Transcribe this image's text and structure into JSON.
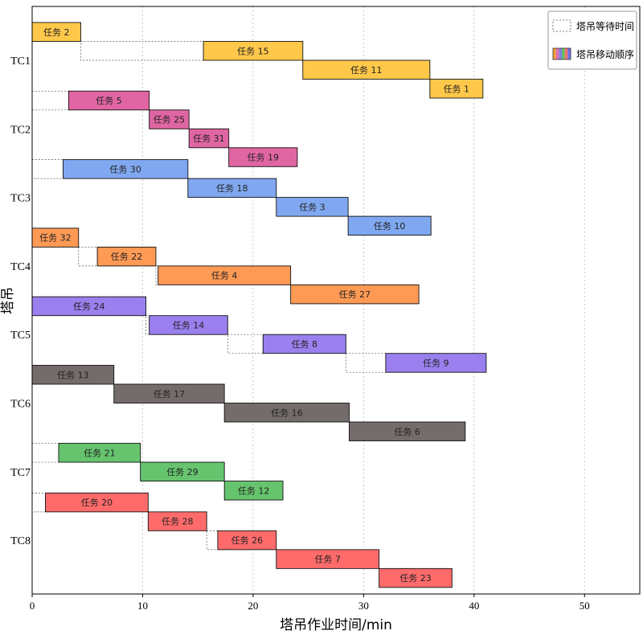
{
  "chart_data": {
    "type": "gantt",
    "xlabel": "塔吊作业时间/min",
    "ylabel": "塔吊",
    "xlim": [
      0,
      55
    ],
    "xticks": [
      0,
      10,
      20,
      30,
      40,
      50
    ],
    "grid": "vertical-dotted",
    "legend": {
      "position": "top-right",
      "entries": [
        {
          "key": "wait",
          "label": "塔吊等待时间"
        },
        {
          "key": "move",
          "label": "塔吊移动顺序"
        }
      ]
    },
    "legend_stripe_colors": [
      "#f0a030",
      "#e070b0",
      "#8080e0",
      "#60c060",
      "#f07070",
      "#7070e0"
    ],
    "cranes": [
      {
        "name": "TC1",
        "color": "#ffc84a",
        "tasks": [
          {
            "label": "任务 2",
            "start": 0,
            "end": 4.4
          },
          {
            "label": "任务 15",
            "start": 15.5,
            "end": 24.5
          },
          {
            "label": "任务 11",
            "start": 24.5,
            "end": 36
          },
          {
            "label": "任务 1",
            "start": 36,
            "end": 40.8
          }
        ],
        "waits": [
          {
            "start": 4.4,
            "end": 15.5
          }
        ]
      },
      {
        "name": "TC2",
        "color": "#e066a3",
        "tasks": [
          {
            "label": "任务 5",
            "start": 3.3,
            "end": 10.6
          },
          {
            "label": "任务 25",
            "start": 10.6,
            "end": 14.2
          },
          {
            "label": "任务 31",
            "start": 14.2,
            "end": 17.8
          },
          {
            "label": "任务 19",
            "start": 17.8,
            "end": 24
          }
        ],
        "waits": [
          {
            "start": 0,
            "end": 3.3
          }
        ]
      },
      {
        "name": "TC3",
        "color": "#80a8f0",
        "tasks": [
          {
            "label": "任务 30",
            "start": 2.8,
            "end": 14.1
          },
          {
            "label": "任务 18",
            "start": 14.1,
            "end": 22.1
          },
          {
            "label": "任务 3",
            "start": 22.1,
            "end": 28.6
          },
          {
            "label": "任务 10",
            "start": 28.6,
            "end": 36.1
          }
        ],
        "waits": [
          {
            "start": 0,
            "end": 2.8
          }
        ]
      },
      {
        "name": "TC4",
        "color": "#ff9a55",
        "tasks": [
          {
            "label": "任务 32",
            "start": 0,
            "end": 4.2
          },
          {
            "label": "任务 22",
            "start": 5.9,
            "end": 11.2
          },
          {
            "label": "任务 4",
            "start": 11.4,
            "end": 23.4
          },
          {
            "label": "任务 27",
            "start": 23.4,
            "end": 35
          }
        ],
        "waits": [
          {
            "start": 4.2,
            "end": 5.9
          },
          {
            "start": 11.2,
            "end": 11.4
          }
        ]
      },
      {
        "name": "TC5",
        "color": "#9a80ee",
        "tasks": [
          {
            "label": "任务 24",
            "start": 0,
            "end": 10.3
          },
          {
            "label": "任务 14",
            "start": 10.6,
            "end": 17.7
          },
          {
            "label": "任务 8",
            "start": 20.9,
            "end": 28.4
          },
          {
            "label": "任务 9",
            "start": 32,
            "end": 41.1
          }
        ],
        "waits": [
          {
            "start": 10.3,
            "end": 10.6
          },
          {
            "start": 17.7,
            "end": 20.9
          },
          {
            "start": 28.4,
            "end": 32
          }
        ]
      },
      {
        "name": "TC6",
        "color": "#746b6b",
        "tasks": [
          {
            "label": "任务 13",
            "start": 0,
            "end": 7.4
          },
          {
            "label": "任务 17",
            "start": 7.4,
            "end": 17.4
          },
          {
            "label": "任务 16",
            "start": 17.4,
            "end": 28.7
          },
          {
            "label": "任务 6",
            "start": 28.7,
            "end": 39.2
          }
        ],
        "waits": []
      },
      {
        "name": "TC7",
        "color": "#66c46e",
        "tasks": [
          {
            "label": "任务 21",
            "start": 2.4,
            "end": 9.8
          },
          {
            "label": "任务 29",
            "start": 9.8,
            "end": 17.4
          },
          {
            "label": "任务 12",
            "start": 17.4,
            "end": 22.7
          }
        ],
        "waits": [
          {
            "start": 0,
            "end": 2.4
          }
        ]
      },
      {
        "name": "TC8",
        "color": "#ff6b6b",
        "tasks": [
          {
            "label": "任务 20",
            "start": 1.2,
            "end": 10.5
          },
          {
            "label": "任务 28",
            "start": 10.5,
            "end": 15.8
          },
          {
            "label": "任务 26",
            "start": 16.8,
            "end": 22.1
          },
          {
            "label": "任务 7",
            "start": 22.1,
            "end": 31.4
          },
          {
            "label": "任务 23",
            "start": 31.4,
            "end": 38
          }
        ],
        "waits": [
          {
            "start": 0,
            "end": 1.2
          },
          {
            "start": 15.8,
            "end": 16.8
          }
        ]
      }
    ]
  }
}
